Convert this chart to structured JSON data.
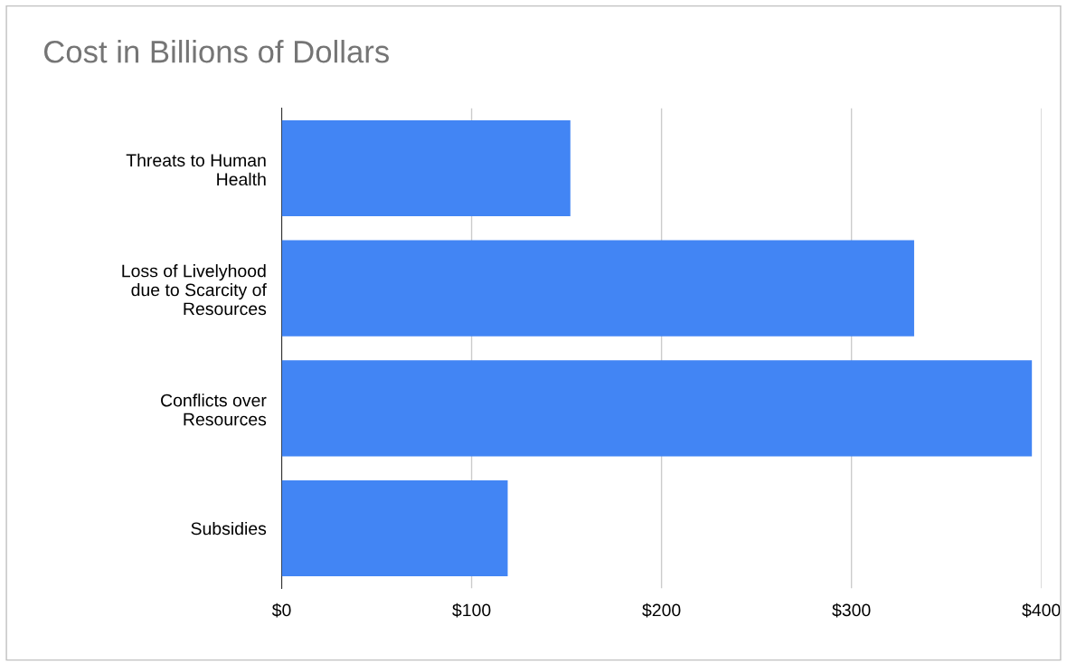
{
  "chart_data": {
    "type": "bar",
    "orientation": "horizontal",
    "title": "Cost in Billions of Dollars",
    "categories": [
      "Threats to Human\nHealth",
      "Loss of Livelyhood\ndue to Scarcity of\nResources",
      "Conflicts over\nResources",
      "Subsidies"
    ],
    "values": [
      152,
      333,
      395,
      119
    ],
    "color": "#4285f4",
    "xlim": [
      0,
      400
    ],
    "xticks": [
      {
        "value": 0,
        "label": "$0"
      },
      {
        "value": 100,
        "label": "$100"
      },
      {
        "value": 200,
        "label": "$200"
      },
      {
        "value": 300,
        "label": "$300"
      },
      {
        "value": 400,
        "label": "$400"
      }
    ],
    "grid": "x",
    "legend": false
  }
}
